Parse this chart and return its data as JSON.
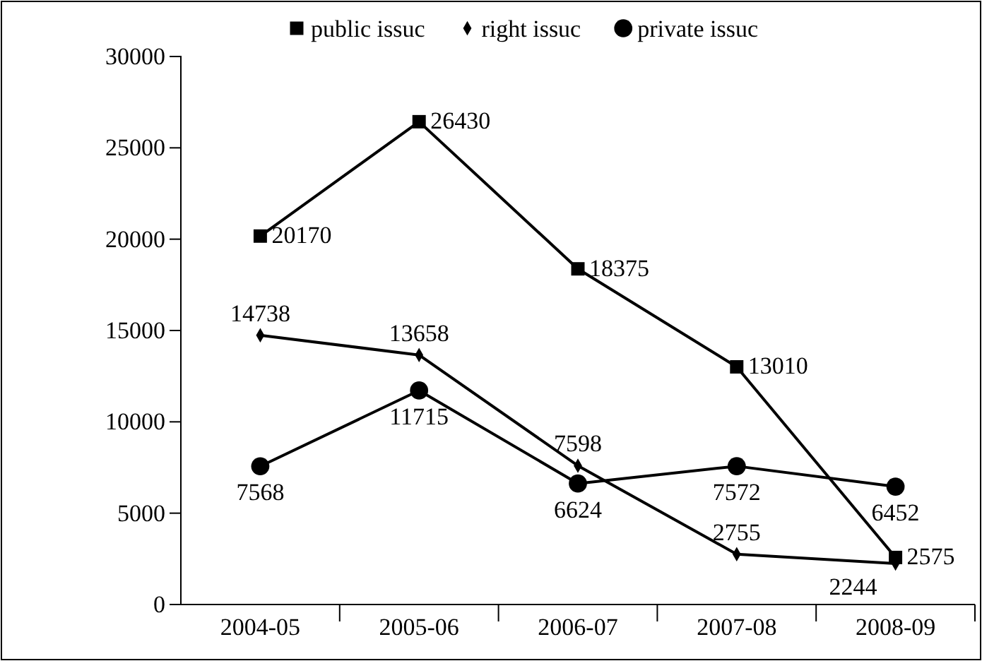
{
  "chart_data": {
    "type": "line",
    "categories": [
      "2004-05",
      "2005-06",
      "2006-07",
      "2007-08",
      "2008-09"
    ],
    "series": [
      {
        "name": "public issuc",
        "color": "#000000",
        "marker": "square",
        "values": [
          20170,
          26430,
          18375,
          13010,
          2575
        ]
      },
      {
        "name": "right issuc",
        "color": "#000000",
        "marker": "diamond",
        "values": [
          14738,
          13658,
          7598,
          2755,
          2244
        ]
      },
      {
        "name": "private issuc",
        "color": "#000000",
        "marker": "circle",
        "values": [
          7568,
          11715,
          6624,
          7572,
          6452
        ]
      }
    ],
    "ylim": [
      0,
      30000
    ],
    "yticks": [
      0,
      5000,
      10000,
      15000,
      20000,
      25000,
      30000
    ],
    "grid": false,
    "legend": "top",
    "data_labels": true
  }
}
